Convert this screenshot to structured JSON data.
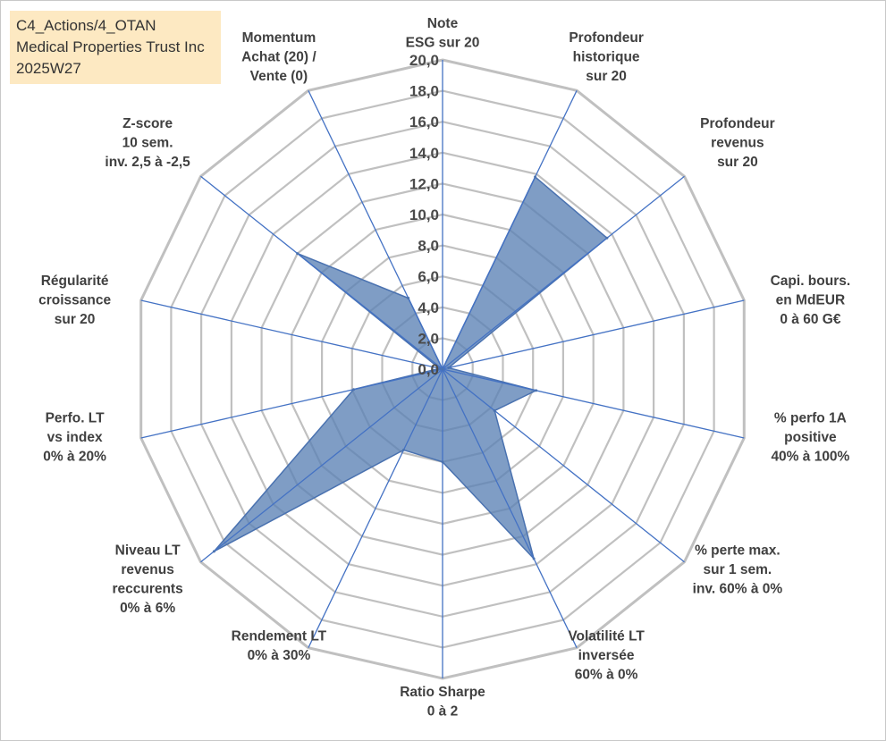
{
  "header": {
    "line1": "C4_Actions/4_OTAN",
    "line2": "Medical Properties Trust Inc",
    "line3": "2025W27"
  },
  "chart_data": {
    "type": "radar",
    "rmin": 0,
    "rmax": 20,
    "ticks": [
      "0,0",
      "2,0",
      "4,0",
      "6,0",
      "8,0",
      "10,0",
      "12,0",
      "14,0",
      "16,0",
      "18,0",
      "20,0"
    ],
    "categories": [
      [
        "Note",
        "ESG sur 20"
      ],
      [
        "Profondeur",
        "historique",
        "sur 20"
      ],
      [
        "Profondeur",
        "revenus",
        "sur 20"
      ],
      [
        "Capi. bours.",
        "en MdEUR",
        "0 à 60 G€"
      ],
      [
        "% perfo 1A",
        "positive",
        "40% à 100%"
      ],
      [
        "% perte max.",
        "sur 1 sem.",
        "inv. 60% à 0%"
      ],
      [
        "Volatilité LT",
        "inversée",
        "60% à 0%"
      ],
      [
        "Ratio Sharpe",
        "0 à 2"
      ],
      [
        "Rendement LT",
        "0% à 30%"
      ],
      [
        "Niveau LT",
        "revenus",
        "reccurents",
        "0% à 6%"
      ],
      [
        "Perfo. LT",
        "vs index",
        "0% à 20%"
      ],
      [
        "Régularité",
        "croissance",
        "sur 20"
      ],
      [
        "Z-score",
        "10 sem.",
        "inv. 2,5 à -2,5"
      ],
      [
        "Momentum",
        "Achat (20) /",
        "Vente (0)"
      ]
    ],
    "series": [
      {
        "values": [
          0,
          13.8,
          13.6,
          0.4,
          6.2,
          4.3,
          13.6,
          6.0,
          5.8,
          18.9,
          5.9,
          0.2,
          12.0,
          5.1
        ],
        "color": "#5b82b5"
      }
    ],
    "grid_color": "#c0c0c0",
    "axis_color": "#4472c4"
  }
}
